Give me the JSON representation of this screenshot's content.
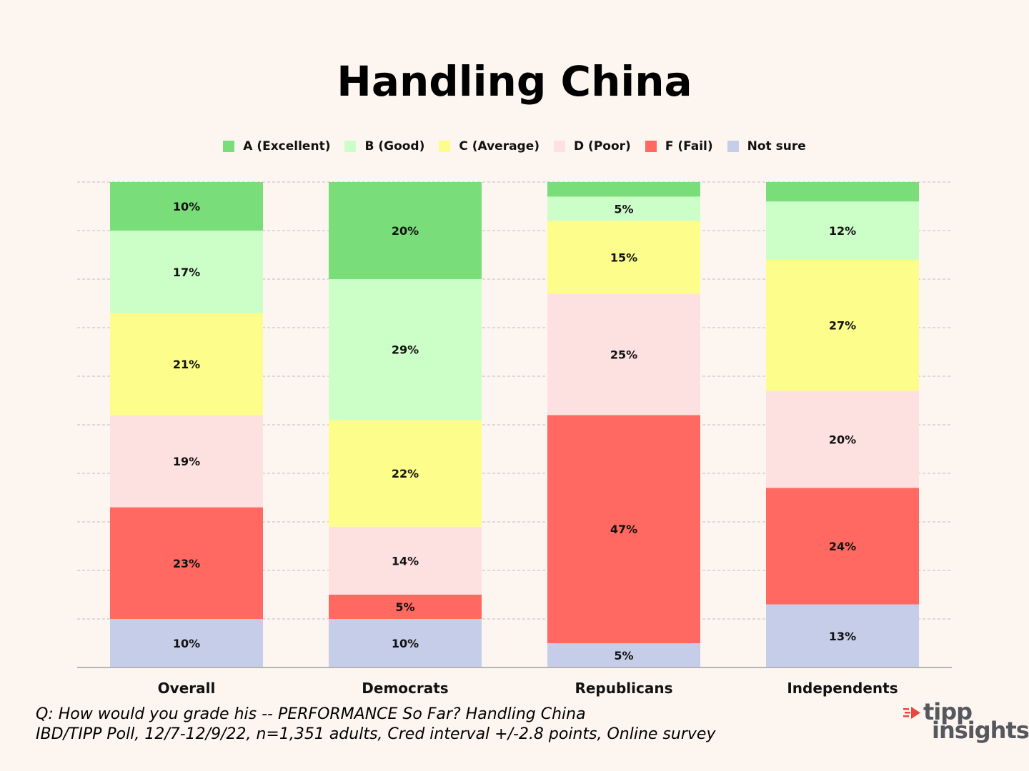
{
  "chart_data": {
    "type": "bar",
    "stacked": true,
    "title": "Handling China",
    "categories": [
      "Overall",
      "Democrats",
      "Republicans",
      "Independents"
    ],
    "series": [
      {
        "name": "A (Excellent)",
        "color": "#79dd79",
        "values": [
          10,
          20,
          3,
          4
        ],
        "labels": [
          "10%",
          "20%",
          "",
          ""
        ]
      },
      {
        "name": "B (Good)",
        "color": "#ccfec8",
        "values": [
          17,
          29,
          5,
          12
        ],
        "labels": [
          "17%",
          "29%",
          "5%",
          "12%"
        ]
      },
      {
        "name": "C (Average)",
        "color": "#fdfd8c",
        "values": [
          21,
          22,
          15,
          27
        ],
        "labels": [
          "21%",
          "22%",
          "15%",
          "27%"
        ]
      },
      {
        "name": "D (Poor)",
        "color": "#fde1e1",
        "values": [
          19,
          14,
          25,
          20
        ],
        "labels": [
          "19%",
          "14%",
          "25%",
          "20%"
        ]
      },
      {
        "name": "F (Fail)",
        "color": "#ff6961",
        "values": [
          23,
          5,
          47,
          24
        ],
        "labels": [
          "23%",
          "5%",
          "47%",
          "24%"
        ]
      },
      {
        "name": "Not sure",
        "color": "#c5cde8",
        "values": [
          10,
          10,
          5,
          13
        ],
        "labels": [
          "10%",
          "10%",
          "5%",
          "13%"
        ]
      }
    ],
    "ylim": [
      0,
      100
    ],
    "grid": true,
    "legend_position": "top"
  },
  "footnote": {
    "line1": "Q:  How would you grade his -- PERFORMANCE So Far? Handling China",
    "line2": "IBD/TIPP Poll, 12/7-12/9/22, n=1,351 adults, Cred interval +/-2.8 points, Online survey"
  },
  "logo": {
    "word1": "tipp",
    "word2": "insights",
    "accent_color": "#e8473f",
    "text_color": "#55595f"
  }
}
